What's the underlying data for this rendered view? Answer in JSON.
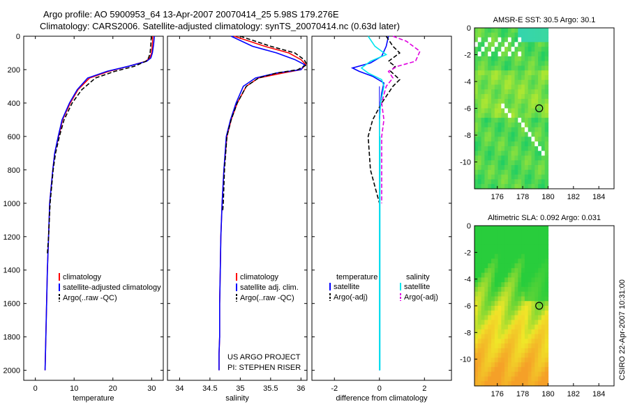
{
  "titles": {
    "line1": "Argo profile: AO 5900953_64 13-Apr-2007 20070414_25 5.98S 179.276E",
    "line2": "Climatology: CARS2006. Satellite-adjusted climatology: synTS_20070414.nc (0.63d later)"
  },
  "side_stamp": "CSIRO 22-Apr-2007 10:31:00",
  "colors": {
    "climatology": "#ff0000",
    "satellite": "#0000ff",
    "argo": "#000000",
    "sat_diff": "#00e5ee",
    "argo_adj": "#e000e0"
  },
  "chart_data": [
    {
      "type": "line",
      "name": "temperature-panel",
      "xlabel": "temperature",
      "ylabel": "",
      "xlim": [
        -3,
        33
      ],
      "ylim": [
        2060,
        0
      ],
      "xticks": [
        0,
        10,
        20,
        30
      ],
      "yticks": [
        0,
        200,
        400,
        600,
        800,
        1000,
        1200,
        1400,
        1600,
        1800,
        2000
      ],
      "legend": [
        "climatology",
        "satellite-adjusted climatology",
        "Argo(..raw -QC)"
      ],
      "series": [
        {
          "name": "climatology",
          "color": "climatology",
          "x": [
            30.3,
            30.2,
            30,
            29.5,
            28.5,
            24,
            19,
            14,
            11,
            9,
            7,
            6,
            5,
            4.5,
            4.1,
            3.7,
            3.4,
            3.1,
            2.9,
            2.7,
            2.5
          ],
          "y": [
            0,
            50,
            100,
            130,
            150,
            180,
            210,
            250,
            320,
            400,
            500,
            600,
            700,
            800,
            900,
            1000,
            1200,
            1400,
            1600,
            1800,
            2000
          ]
        },
        {
          "name": "satellite-adjusted climatology",
          "color": "satellite",
          "x": [
            30.7,
            30.5,
            30.2,
            29.8,
            28.7,
            24,
            18.5,
            13.5,
            10.8,
            8.8,
            6.9,
            5.9,
            5,
            4.5,
            4.1,
            3.7,
            3.4,
            3.1,
            2.9,
            2.7,
            2.5
          ],
          "y": [
            0,
            50,
            100,
            130,
            150,
            180,
            210,
            250,
            320,
            400,
            500,
            600,
            700,
            800,
            900,
            1000,
            1200,
            1400,
            1600,
            1800,
            2000
          ]
        },
        {
          "name": "Argo(..raw -QC)",
          "color": "argo",
          "dash": true,
          "x": [
            29.9,
            29.8,
            29.6,
            29.2,
            28.5,
            25.5,
            20.5,
            15.5,
            12,
            9.5,
            7.4,
            6.2,
            5.2,
            4.6,
            4.2,
            3.8,
            3.4,
            3.1
          ],
          "y": [
            0,
            50,
            100,
            130,
            150,
            180,
            210,
            250,
            320,
            400,
            500,
            600,
            700,
            800,
            900,
            1000,
            1200,
            1300
          ]
        }
      ]
    },
    {
      "type": "line",
      "name": "salinity-panel",
      "xlabel": "salinity",
      "ylabel": "",
      "xlim": [
        33.8,
        36.1
      ],
      "ylim": [
        2060,
        0
      ],
      "xticks": [
        34,
        34.5,
        35,
        35.5,
        36
      ],
      "legend": [
        "climatology",
        "satellite adj. clim.",
        "Argo(..raw -QC)"
      ],
      "series": [
        {
          "name": "climatology",
          "color": "climatology",
          "x": [
            34.9,
            35.4,
            35.8,
            36.0,
            36.08,
            36.0,
            35.7,
            35.3,
            35.1,
            34.95,
            34.85,
            34.78,
            34.73,
            34.7,
            34.68,
            34.67,
            34.66,
            34.66,
            34.65,
            34.65
          ],
          "y": [
            0,
            60,
            100,
            140,
            170,
            200,
            220,
            250,
            300,
            400,
            500,
            600,
            800,
            1000,
            1200,
            1400,
            1600,
            1800,
            1900,
            2000
          ]
        },
        {
          "name": "satellite adj. clim.",
          "color": "satellite",
          "x": [
            34.85,
            35.2,
            35.6,
            35.9,
            36.06,
            36.0,
            35.6,
            35.25,
            35.05,
            34.93,
            34.84,
            34.77,
            34.73,
            34.7,
            34.68,
            34.67,
            34.66,
            34.66,
            34.65,
            34.65
          ],
          "y": [
            0,
            60,
            100,
            140,
            170,
            200,
            220,
            250,
            300,
            400,
            500,
            600,
            800,
            1000,
            1200,
            1400,
            1600,
            1800,
            1900,
            2000
          ]
        },
        {
          "name": "Argo(..raw -QC)",
          "color": "argo",
          "dash": true,
          "x": [
            35.0,
            35.5,
            35.9,
            36.05,
            36.1,
            35.95,
            35.6,
            35.3,
            35.1,
            34.95,
            34.85,
            34.78,
            34.74,
            34.72,
            34.71
          ],
          "y": [
            0,
            60,
            100,
            140,
            170,
            200,
            220,
            250,
            300,
            400,
            500,
            600,
            800,
            1000,
            1050
          ]
        }
      ]
    },
    {
      "type": "line",
      "name": "difference-panel",
      "xlabel": "difference from climatology",
      "ylabel": "",
      "xlim": [
        -3,
        3.2
      ],
      "ylim": [
        2060,
        0
      ],
      "xticks": [
        -2,
        0,
        2
      ],
      "legend_titles": [
        "temperature",
        "salinity"
      ],
      "legend": [
        "satellite",
        "Argo(-adj)",
        "satellite",
        "Argo(-adj)"
      ],
      "series": [
        {
          "name": "temperature satellite",
          "color": "satellite",
          "x": [
            0.4,
            0.3,
            0.1,
            -0.4,
            -1.2,
            -0.9,
            -0.3,
            0.2,
            0.1,
            0.05,
            0,
            0,
            0,
            0,
            0,
            0,
            0,
            0
          ],
          "y": [
            0,
            60,
            120,
            160,
            190,
            210,
            240,
            280,
            340,
            400,
            500,
            600,
            800,
            1000,
            1200,
            1400,
            1600,
            2000
          ]
        },
        {
          "name": "temperature Argo(-adj)",
          "color": "argo",
          "dash": true,
          "x": [
            0.3,
            0.6,
            0.9,
            0.4,
            0.7,
            0.5,
            0.9,
            0.6,
            0.4,
            0.1,
            -0.3,
            -0.5,
            -0.4,
            -0.2,
            0
          ],
          "y": [
            0,
            60,
            100,
            150,
            180,
            210,
            260,
            300,
            340,
            400,
            500,
            600,
            800,
            900,
            1000
          ]
        },
        {
          "name": "salinity satellite",
          "color": "sat_diff",
          "x": [
            -0.5,
            -0.2,
            0.3,
            -0.4,
            -0.8,
            -0.5,
            0.1,
            0.2,
            0.05,
            0,
            0,
            0,
            0,
            0
          ],
          "y": [
            0,
            60,
            110,
            150,
            190,
            220,
            260,
            300,
            400,
            500,
            800,
            1200,
            1600,
            2000
          ]
        },
        {
          "name": "salinity Argo(-adj)",
          "color": "argo_adj",
          "dash": true,
          "x": [
            0.6,
            1.2,
            1.8,
            1.6,
            0.8,
            0.4,
            0.6,
            0.3,
            0.2,
            0.1,
            0.2,
            0.1,
            0.1
          ],
          "y": [
            0,
            30,
            90,
            150,
            180,
            210,
            250,
            300,
            350,
            400,
            500,
            600,
            1000
          ]
        }
      ]
    },
    {
      "type": "heatmap",
      "name": "sst-map",
      "title": "AMSR-E SST: 30.5 Argo: 30.1",
      "xlim": [
        174.2,
        185.2
      ],
      "ylim": [
        -12,
        0
      ],
      "xticks": [
        176,
        178,
        180,
        182,
        184
      ],
      "yticks": [
        0,
        -2,
        -4,
        -6,
        -8,
        -10
      ],
      "argo_position": [
        179.3,
        -6.0
      ]
    },
    {
      "type": "heatmap",
      "name": "sla-map",
      "title": "Altimetric SLA: 0.092 Argo: 0.031",
      "xlim": [
        174.2,
        185.2
      ],
      "ylim": [
        -12,
        0
      ],
      "xticks": [
        176,
        178,
        180,
        182,
        184
      ],
      "yticks": [
        0,
        -2,
        -4,
        -6,
        -8,
        -10
      ],
      "argo_position": [
        179.3,
        -6.0
      ]
    }
  ],
  "project": {
    "line1": "US ARGO PROJECT",
    "line2": "PI: STEPHEN RISER"
  }
}
